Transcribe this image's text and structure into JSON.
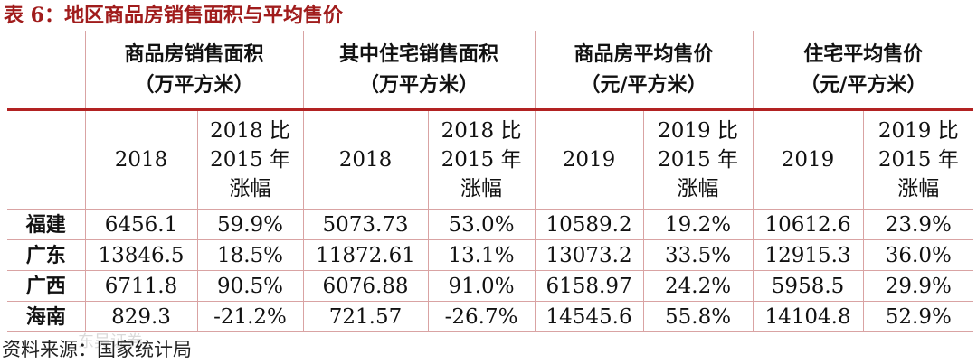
{
  "title": "表 6：地区商品房销售面积与平均售价",
  "header": {
    "group1": [
      "商品房销售面积",
      "（万平方米）"
    ],
    "group2": [
      "其中住宅销售面积",
      "（万平方米）"
    ],
    "group3": [
      "商品房平均售价",
      "（元/平方米）"
    ],
    "group4": [
      "住宅平均售价",
      "（元/平方米）"
    ]
  },
  "subheader": {
    "c1": "2018",
    "c2": [
      "2018 比",
      "2015 年",
      "涨幅"
    ],
    "c3": "2018",
    "c4": [
      "2018 比",
      "2015 年",
      "涨幅"
    ],
    "c5": "2019",
    "c6": [
      "2019 比",
      "2015 年",
      "涨幅"
    ],
    "c7": "2019",
    "c8": [
      "2019 比",
      "2015 年",
      "涨幅"
    ]
  },
  "rows": [
    {
      "region": "福建",
      "v": [
        "6456.1",
        "59.9%",
        "5073.73",
        "53.0%",
        "10589.2",
        "19.2%",
        "10612.6",
        "23.9%"
      ]
    },
    {
      "region": "广东",
      "v": [
        "13846.5",
        "18.5%",
        "11872.61",
        "13.1%",
        "13073.2",
        "33.5%",
        "12915.3",
        "36.0%"
      ]
    },
    {
      "region": "广西",
      "v": [
        "6711.8",
        "90.5%",
        "6076.88",
        "91.0%",
        "6158.97",
        "24.2%",
        "5958.5",
        "29.9%"
      ]
    },
    {
      "region": "海南",
      "v": [
        "829.3",
        "-21.2%",
        "721.57",
        "-26.7%",
        "14545.6",
        "55.8%",
        "14104.8",
        "52.9%"
      ]
    }
  ],
  "source": "资料来源：国家统计局",
  "watermark": "东吴证券"
}
